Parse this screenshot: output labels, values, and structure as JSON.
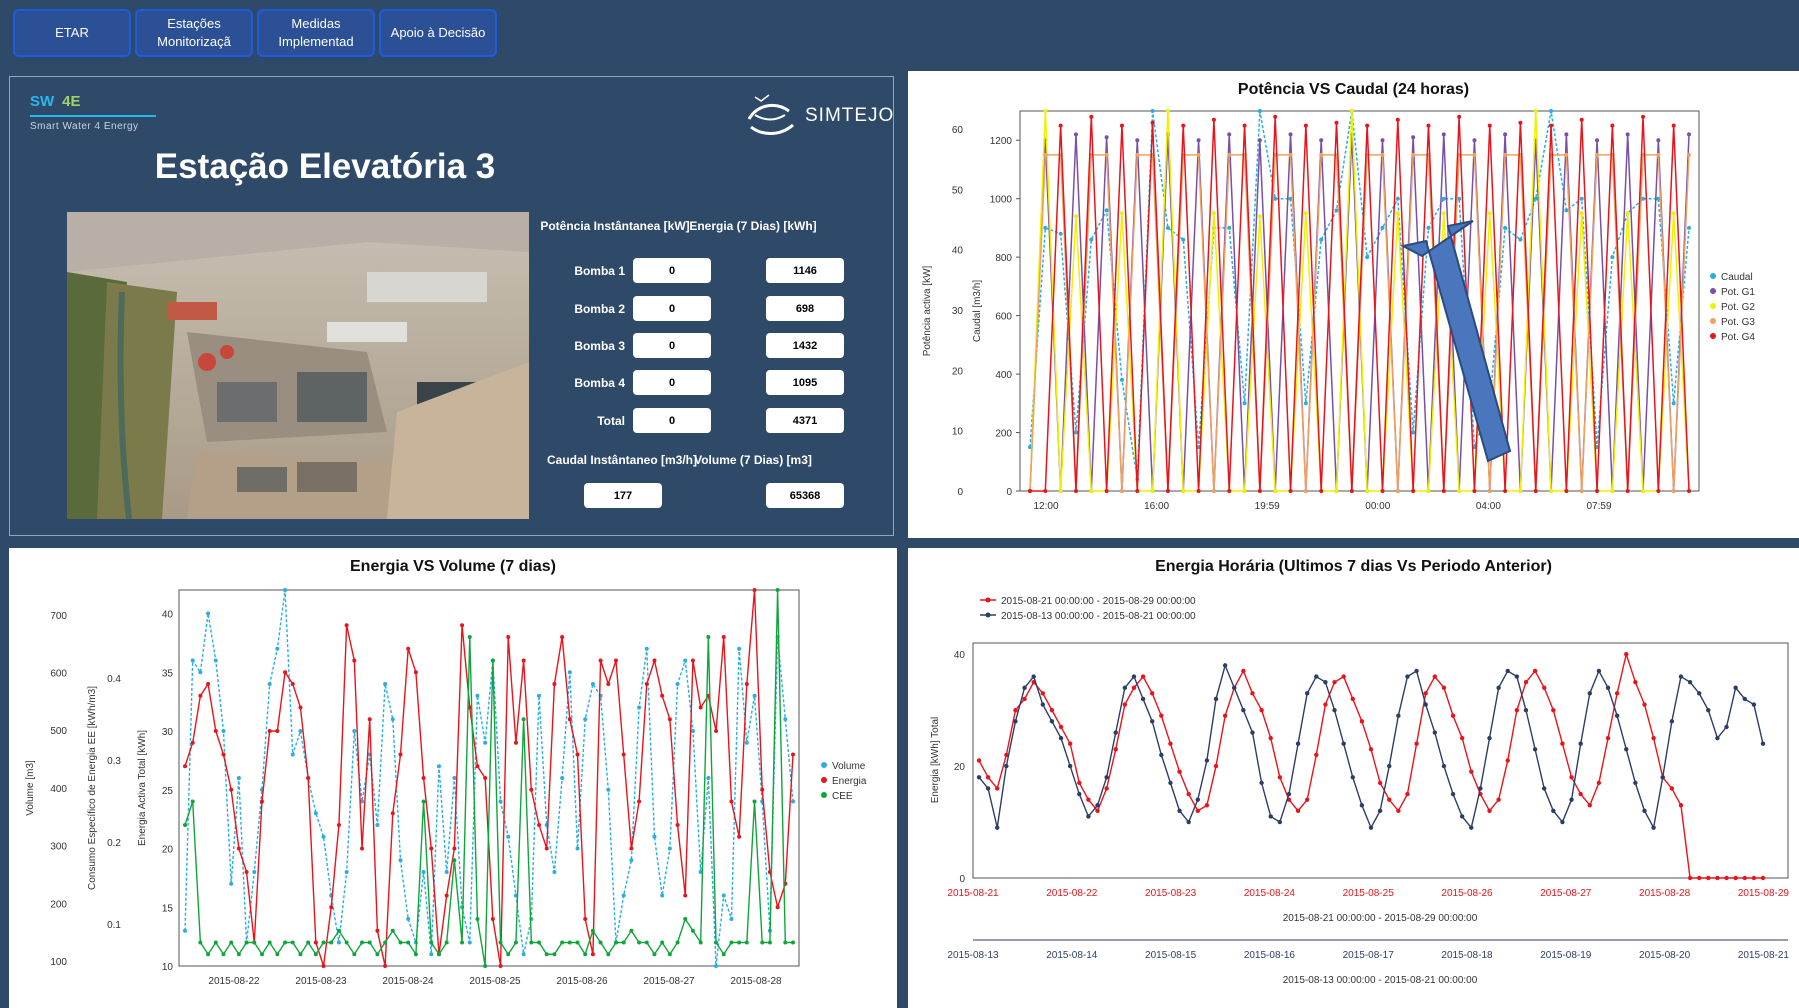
{
  "nav": [
    {
      "label": "ETAR"
    },
    {
      "label": "Estações Monitorizaçã"
    },
    {
      "label": "Medidas Implementad"
    },
    {
      "label": "Apoio à Decisão"
    }
  ],
  "logo": {
    "sw": "SW",
    "e4": "4E",
    "sub": "Smart Water 4 Energy",
    "brand": "SIMTEJO"
  },
  "station": {
    "title": "Estação Elevatória 3",
    "col_power": "Potência Instântanea [kW]",
    "col_energy": "Energia (7 Dias) [kWh]",
    "rows": [
      {
        "label": "Bomba 1",
        "power": "0",
        "energy": "1146"
      },
      {
        "label": "Bomba 2",
        "power": "0",
        "energy": "698"
      },
      {
        "label": "Bomba 3",
        "power": "0",
        "energy": "1432"
      },
      {
        "label": "Bomba 4",
        "power": "0",
        "energy": "1095"
      },
      {
        "label": "Total",
        "power": "0",
        "energy": "4371"
      }
    ],
    "col_flow": "Caudal Instântaneo [m3/h]",
    "col_volume": "Volume (7 Dias) [m3]",
    "flow": "177",
    "volume": "65368"
  },
  "colors": {
    "background": "#2f4a68",
    "nav_border": "#1d5be0",
    "nav_fill": "#2b5096",
    "accent": "#27b8f0"
  },
  "chart_data": [
    {
      "type": "line",
      "title": "Potência VS Caudal (24 horas)",
      "ylabel": "Potência activa [kW]",
      "ylabel2": "Caudal [m3/h]",
      "y_ticks_left": [
        "0",
        "10",
        "20",
        "30",
        "40",
        "50",
        "60"
      ],
      "y_ticks_right": [
        "0",
        "200",
        "400",
        "600",
        "800",
        "1000",
        "1200"
      ],
      "x_ticks": [
        "12:00",
        "16:00",
        "19:59",
        "00:00",
        "04:00",
        "07:59"
      ],
      "ylim": [
        0,
        1300
      ],
      "legend_position": "right",
      "series": [
        {
          "name": "Caudal",
          "color": "#29aee0",
          "values": [
            150,
            900,
            880,
            200,
            860,
            960,
            380,
            40,
            1300,
            900,
            860,
            150,
            900,
            900,
            300,
            1300,
            1000,
            1000,
            300,
            860,
            960,
            1300,
            800,
            900,
            1000,
            200,
            900,
            1000,
            1000,
            150,
            300,
            900,
            860,
            1000,
            1300,
            960,
            1000,
            150,
            800,
            950,
            1000,
            1000,
            300,
            900
          ]
        },
        {
          "name": "Pot. G1",
          "color": "#7a4fa6",
          "values": [
            0,
            1200,
            0,
            1220,
            0,
            1210,
            0,
            1200,
            0,
            1220,
            0,
            1200,
            0,
            1220,
            0,
            1200,
            0,
            1220,
            0,
            1200,
            0,
            1220,
            0,
            1200,
            0,
            1210,
            0,
            1220,
            0,
            1200,
            0,
            1220,
            0,
            1200,
            0,
            1220,
            0,
            1200,
            0,
            1220,
            0,
            1200,
            0,
            1220
          ]
        },
        {
          "name": "Pot. G2",
          "color": "#f0f000",
          "values": [
            0,
            1300,
            0,
            940,
            0,
            0,
            950,
            0,
            0,
            1300,
            0,
            0,
            950,
            0,
            0,
            940,
            0,
            0,
            950,
            0,
            0,
            1300,
            0,
            0,
            950,
            0,
            0,
            950,
            0,
            0,
            950,
            0,
            0,
            1300,
            0,
            0,
            950,
            0,
            0,
            950,
            0,
            0,
            950,
            0
          ]
        },
        {
          "name": "Pot. G3",
          "color": "#f0a060",
          "values": [
            0,
            1150,
            1150,
            0,
            1150,
            1150,
            0,
            1150,
            1150,
            0,
            1150,
            1150,
            0,
            1150,
            1150,
            0,
            1150,
            1150,
            0,
            1150,
            1150,
            0,
            1150,
            1150,
            0,
            1150,
            1150,
            0,
            1150,
            1150,
            0,
            1150,
            1150,
            0,
            1150,
            1150,
            0,
            1150,
            1150,
            0,
            1150,
            1150,
            0,
            1150
          ]
        },
        {
          "name": "Pot. G4",
          "color": "#e8141c",
          "values": [
            0,
            0,
            1250,
            0,
            1280,
            0,
            1250,
            0,
            1260,
            0,
            1250,
            0,
            1270,
            0,
            1250,
            0,
            1280,
            0,
            1250,
            0,
            1260,
            0,
            1250,
            0,
            1270,
            0,
            1250,
            0,
            1280,
            0,
            1250,
            0,
            1260,
            0,
            1250,
            0,
            1270,
            0,
            1250,
            0,
            1280,
            0,
            1250,
            0
          ]
        }
      ]
    },
    {
      "type": "line",
      "title": "Energia VS Volume (7 dias)",
      "ylabel": "Volume [m3]",
      "ylabel2": "Consumo Específico de Energia EE [kWh/m3]",
      "ylabel3": "Energia Activa Total [kWh]",
      "y_ticks_volume": [
        "100",
        "200",
        "300",
        "400",
        "500",
        "600",
        "700"
      ],
      "y_ticks_cee": [
        "0.1",
        "0.2",
        "0.3",
        "0.4"
      ],
      "y_ticks_energy": [
        "10",
        "15",
        "20",
        "25",
        "30",
        "35",
        "40"
      ],
      "x_ticks": [
        "2015-08-22",
        "2015-08-23",
        "2015-08-24",
        "2015-08-25",
        "2015-08-26",
        "2015-08-27",
        "2015-08-28"
      ],
      "ylim": [
        10,
        42
      ],
      "legend_position": "right",
      "series": [
        {
          "name": "Volume",
          "color": "#29aee0",
          "values": [
            13,
            36,
            35,
            40,
            36,
            30,
            17,
            26,
            12,
            18,
            25,
            34,
            37,
            42,
            28,
            30,
            26,
            23,
            21,
            16,
            12,
            18,
            30,
            24,
            28,
            22,
            34,
            31,
            19,
            14,
            12,
            18,
            11,
            27,
            18,
            26,
            15,
            12,
            33,
            29,
            36,
            24,
            21,
            16,
            11,
            14,
            33,
            22,
            18,
            26,
            35,
            20,
            31,
            34,
            33,
            25,
            12,
            16,
            19,
            32,
            37,
            21,
            16,
            20,
            34,
            36,
            30,
            18,
            26,
            10,
            16,
            14,
            37,
            29,
            33,
            24,
            13,
            38,
            31,
            24
          ]
        },
        {
          "name": "Energia",
          "color": "#e8141c",
          "values": [
            27,
            29,
            33,
            34,
            30,
            28,
            25,
            20,
            18,
            12,
            24,
            30,
            30,
            35,
            34,
            32,
            26,
            12,
            10,
            15,
            22,
            39,
            36,
            20,
            31,
            13,
            10,
            23,
            28,
            37,
            35,
            26,
            20,
            11,
            16,
            20,
            39,
            32,
            27,
            26,
            14,
            10,
            38,
            29,
            36,
            25,
            22,
            20,
            34,
            38,
            31,
            28,
            14,
            11,
            36,
            34,
            36,
            28,
            20,
            24,
            34,
            36,
            33,
            31,
            22,
            16,
            36,
            32,
            33,
            30,
            38,
            24,
            21,
            34,
            42,
            25,
            18,
            15,
            17,
            28
          ]
        },
        {
          "name": "CEE",
          "color": "#12a43c",
          "values": [
            22,
            24,
            12,
            11,
            12,
            11,
            12,
            11,
            12,
            12,
            11,
            12,
            11,
            12,
            12,
            11,
            12,
            11,
            12,
            12,
            13,
            12,
            11,
            12,
            12,
            11,
            12,
            13,
            12,
            12,
            11,
            24,
            12,
            11,
            12,
            19,
            12,
            38,
            14,
            10,
            36,
            12,
            11,
            12,
            31,
            12,
            12,
            11,
            11,
            12,
            12,
            12,
            11,
            13,
            12,
            11,
            12,
            12,
            13,
            12,
            12,
            11,
            12,
            11,
            12,
            14,
            13,
            12,
            38,
            12,
            11,
            12,
            12,
            12,
            24,
            12,
            12,
            42,
            12,
            12
          ]
        }
      ]
    },
    {
      "type": "line",
      "title": "Energia Horária (Ultimos 7 dias Vs Periodo Anterior)",
      "ylabel": "Energia [kWh] Total",
      "y_ticks": [
        "0",
        "20",
        "40"
      ],
      "ylim": [
        0,
        42
      ],
      "x_ticks_top": [
        "2015-08-21",
        "2015-08-22",
        "2015-08-23",
        "2015-08-24",
        "2015-08-25",
        "2015-08-26",
        "2015-08-27",
        "2015-08-28",
        "2015-08-29"
      ],
      "x_title_top": "2015-08-21 00:00:00 - 2015-08-29 00:00:00",
      "x_ticks_bottom": [
        "2015-08-13",
        "2015-08-14",
        "2015-08-15",
        "2015-08-16",
        "2015-08-17",
        "2015-08-18",
        "2015-08-19",
        "2015-08-20",
        "2015-08-21"
      ],
      "x_title_bottom": "2015-08-13 00:00:00 - 2015-08-21 00:00:00",
      "legend_position": "top-left",
      "series": [
        {
          "name": "2015-08-21 00:00:00 - 2015-08-29 00:00:00",
          "color": "#e8141c",
          "values": [
            21,
            18,
            16,
            22,
            30,
            32,
            35,
            33,
            30,
            27,
            24,
            17,
            14,
            12,
            16,
            23,
            31,
            34,
            36,
            33,
            29,
            24,
            19,
            15,
            12,
            13,
            20,
            29,
            34,
            37,
            33,
            30,
            25,
            18,
            14,
            12,
            14,
            22,
            31,
            35,
            36,
            32,
            28,
            23,
            17,
            14,
            12,
            15,
            24,
            33,
            36,
            34,
            29,
            25,
            19,
            15,
            12,
            14,
            21,
            30,
            35,
            37,
            34,
            30,
            24,
            18,
            15,
            13,
            17,
            25,
            33,
            40,
            35,
            31,
            25,
            18,
            16,
            13,
            0,
            0,
            0,
            0,
            0,
            0,
            0,
            0,
            0
          ]
        },
        {
          "name": "2015-08-13 00:00:00 - 2015-08-21 00:00:00",
          "color": "#2c3e66",
          "values": [
            18,
            16,
            9,
            20,
            28,
            34,
            36,
            31,
            28,
            25,
            20,
            15,
            11,
            13,
            18,
            26,
            34,
            36,
            32,
            28,
            22,
            17,
            12,
            10,
            14,
            21,
            32,
            38,
            34,
            30,
            26,
            17,
            11,
            10,
            15,
            24,
            33,
            36,
            35,
            30,
            24,
            18,
            13,
            9,
            12,
            20,
            29,
            36,
            37,
            31,
            26,
            20,
            15,
            11,
            9,
            16,
            25,
            34,
            37,
            36,
            30,
            23,
            16,
            12,
            10,
            14,
            24,
            33,
            37,
            34,
            29,
            23,
            17,
            12,
            9,
            18,
            28,
            36,
            35,
            33,
            30,
            25,
            27,
            34,
            32,
            31,
            24
          ]
        }
      ]
    }
  ]
}
